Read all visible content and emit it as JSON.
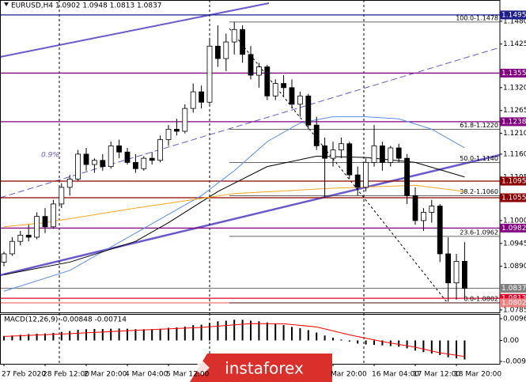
{
  "chart_data": {
    "type": "candlestick",
    "header": "EURUSD,H4  1.0902 1.0948 1.0813 1.0837",
    "categories": [
      "27 Feb 2020",
      null,
      null,
      null,
      null,
      "28 Feb 12:00",
      null,
      null,
      null,
      null,
      "2 Mar 20:00",
      null,
      null,
      null,
      null,
      "4 Mar 04:00",
      null,
      null,
      null,
      null,
      "5 Mar 12:00",
      null,
      null,
      null,
      null,
      null,
      null,
      null,
      null,
      null,
      null,
      null,
      null,
      null,
      null,
      null,
      null,
      null,
      null,
      null,
      "Mar 20:00",
      null,
      null,
      null,
      null,
      "16 Mar 04:00",
      null,
      null,
      null,
      null,
      "17 Mar 12:00",
      null,
      null,
      null,
      null,
      "18 Mar 20:00",
      null
    ],
    "open": [
      1.09,
      1.092,
      1.095,
      1.0965,
      1.096,
      1.101,
      1.0985,
      1.104,
      1.108,
      1.11,
      1.116,
      1.1135,
      1.1145,
      1.113,
      1.118,
      1.1165,
      1.114,
      1.1125,
      1.115,
      1.1145,
      1.1195,
      1.122,
      1.1215,
      1.127,
      1.131,
      1.1285,
      1.142,
      1.139,
      1.143,
      1.146,
      1.14,
      1.135,
      1.137,
      1.13,
      1.133,
      1.132,
      1.128,
      1.13,
      1.123,
      1.118,
      1.115,
      1.117,
      1.1185,
      1.111,
      1.108,
      1.114,
      1.118,
      1.114,
      1.1175,
      1.115,
      1.106,
      1.1,
      1.102,
      1.1035,
      1.092,
      1.085,
      1.0902
    ],
    "high": [
      1.0925,
      1.096,
      1.0975,
      1.099,
      1.102,
      1.103,
      1.105,
      1.109,
      1.111,
      1.117,
      1.1175,
      1.115,
      1.116,
      1.119,
      1.1195,
      1.1175,
      1.116,
      1.1155,
      1.1165,
      1.1205,
      1.123,
      1.1245,
      1.128,
      1.133,
      1.1325,
      1.144,
      1.147,
      1.145,
      1.1478,
      1.147,
      1.142,
      1.138,
      1.1375,
      1.134,
      1.135,
      1.134,
      1.131,
      1.1305,
      1.125,
      1.12,
      1.119,
      1.12,
      1.119,
      1.113,
      1.115,
      1.123,
      1.119,
      1.118,
      1.1185,
      1.116,
      1.108,
      1.103,
      1.105,
      1.104,
      1.096,
      1.092,
      1.0948
    ],
    "low": [
      1.089,
      1.0915,
      1.094,
      1.095,
      1.0955,
      1.097,
      1.098,
      1.103,
      1.106,
      1.1095,
      1.112,
      1.1115,
      1.112,
      1.1125,
      1.115,
      1.1135,
      1.1115,
      1.112,
      1.1135,
      1.114,
      1.118,
      1.1205,
      1.121,
      1.126,
      1.127,
      1.128,
      1.137,
      1.136,
      1.14,
      1.138,
      1.134,
      1.132,
      1.129,
      1.129,
      1.13,
      1.127,
      1.125,
      1.122,
      1.117,
      1.1055,
      1.113,
      1.115,
      1.11,
      1.106,
      1.107,
      1.113,
      1.112,
      1.113,
      1.114,
      1.104,
      1.099,
      1.0975,
      1.0995,
      1.09,
      1.0805,
      1.081,
      1.0813
    ],
    "close": [
      1.092,
      1.095,
      1.0965,
      1.096,
      1.101,
      1.0985,
      1.104,
      1.108,
      1.11,
      1.116,
      1.1135,
      1.1145,
      1.113,
      1.118,
      1.1165,
      1.114,
      1.1125,
      1.115,
      1.1145,
      1.1195,
      1.122,
      1.1215,
      1.127,
      1.131,
      1.1285,
      1.142,
      1.139,
      1.143,
      1.146,
      1.14,
      1.135,
      1.137,
      1.13,
      1.133,
      1.132,
      1.128,
      1.13,
      1.123,
      1.118,
      1.115,
      1.117,
      1.1185,
      1.111,
      1.108,
      1.114,
      1.118,
      1.114,
      1.1175,
      1.115,
      1.106,
      1.1,
      1.102,
      1.1035,
      1.092,
      1.085,
      1.0902,
      1.0837
    ],
    "ylim": [
      1.0779,
      1.1531
    ],
    "yticks": [
      {
        "value": 1.148,
        "label": "1.1480"
      },
      1.1425,
      {
        "value": 1.132,
        "label": "1.1320"
      },
      1.1265,
      {
        "value": 1.121,
        "label": "1.1210"
      },
      {
        "value": 1.116,
        "label": "1.1160"
      },
      1.1105,
      {
        "value": 1.1,
        "label": "1.1000"
      },
      1.0945,
      {
        "value": 1.089,
        "label": "1.0890"
      },
      1.0785
    ],
    "levels": [
      {
        "value": 1.1495,
        "color": "#1c1c8a"
      },
      {
        "value": 1.1355,
        "color": "#800080"
      },
      {
        "value": 1.1238,
        "color": "#800080"
      },
      {
        "value": 1.1095,
        "color": "#8b0000"
      },
      {
        "value": 1.1055,
        "color": "#8b0000"
      },
      {
        "value": 1.0982,
        "color": "#800080"
      },
      {
        "value": 1.0837,
        "color": "#808080"
      },
      {
        "value": 1.0813,
        "color": "#e0002a"
      },
      {
        "value": 1.0802,
        "color": "#f08080"
      }
    ],
    "fibonacci": [
      {
        "value": 1.1478,
        "label": "100.0-1.1478"
      },
      {
        "value": 1.122,
        "label": "61.8-1.1220"
      },
      {
        "value": 1.114,
        "label": "50.0-1.1140"
      },
      {
        "value": 1.106,
        "label": "38.2-1.1060"
      },
      {
        "value": 1.0962,
        "label": "23.6-1.0962"
      },
      {
        "value": 1.0802,
        "label": "0.0-1.0802"
      }
    ],
    "moving_averages": [
      {
        "color": "#5b8ee6",
        "x": [
          0,
          8,
          16,
          24,
          28,
          32,
          36,
          40,
          44,
          48,
          52,
          56
        ],
        "values": [
          1.083,
          1.088,
          1.097,
          1.106,
          1.112,
          1.119,
          1.1235,
          1.125,
          1.125,
          1.1245,
          1.122,
          1.1175
        ]
      },
      {
        "color": "#000000",
        "x": [
          0,
          8,
          16,
          20,
          26,
          32,
          38,
          44,
          50,
          56
        ],
        "values": [
          1.087,
          1.09,
          1.095,
          1.0995,
          1.107,
          1.113,
          1.1155,
          1.1152,
          1.114,
          1.1105
        ]
      },
      {
        "color": "#f5a623",
        "x": [
          0,
          5,
          16,
          28,
          40,
          50,
          56
        ],
        "values": [
          1.0985,
          1.0995,
          1.103,
          1.1065,
          1.1078,
          1.1085,
          1.107
        ]
      }
    ],
    "annotation": "0.9%",
    "macd": {
      "title": "MACD(12,26,9) -0.00848 -0.00714",
      "values": [
        0.002,
        0.0022,
        0.0025,
        0.0028,
        0.003,
        0.0031,
        0.0034,
        0.0038,
        0.0042,
        0.0047,
        0.005,
        0.0051,
        0.0051,
        0.0052,
        0.0053,
        0.0052,
        0.005,
        0.005,
        0.005,
        0.0052,
        0.0056,
        0.0058,
        0.0062,
        0.0068,
        0.007,
        0.0078,
        0.0085,
        0.0088,
        0.0092,
        0.0092,
        0.0088,
        0.0085,
        0.008,
        0.0074,
        0.0068,
        0.006,
        0.0054,
        0.0046,
        0.0035,
        0.0022,
        0.0012,
        0.0004,
        -0.0005,
        -0.0014,
        -0.0018,
        -0.002,
        -0.0022,
        -0.0025,
        -0.0028,
        -0.0035,
        -0.0045,
        -0.0052,
        -0.0058,
        -0.0065,
        -0.0075,
        -0.008,
        -0.00848
      ],
      "color": "#000000",
      "signal": {
        "color": "#ff0000",
        "x": [
          0,
          8,
          16,
          24,
          30,
          34,
          38,
          42,
          46,
          50,
          53,
          56
        ],
        "values": [
          0.0018,
          0.003,
          0.0045,
          0.0058,
          0.0075,
          0.0074,
          0.006,
          0.0025,
          -0.0005,
          -0.003,
          -0.0055,
          -0.00714
        ]
      },
      "ylim": [
        -0.0104,
        0.01142
      ],
      "yticks": [
        0.00966,
        {
          "value": 0,
          "label": "0.00"
        },
        -0.00934
      ]
    },
    "watermark": "instaforex"
  }
}
